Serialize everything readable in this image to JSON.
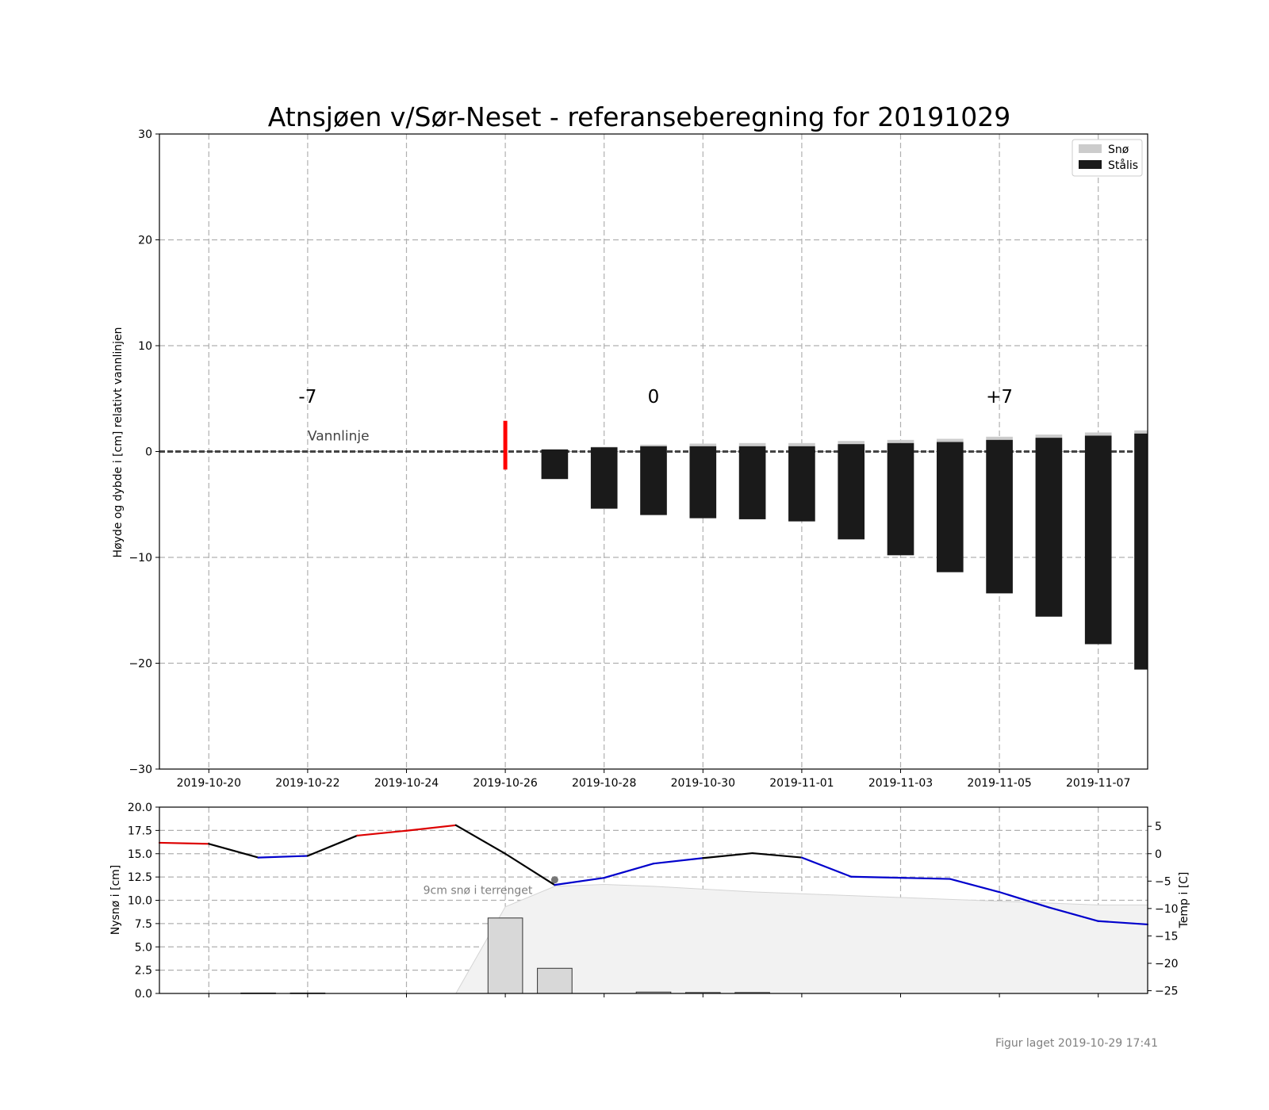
{
  "figure": {
    "title": "Atnsjøen v/Sør-Neset - referanseberegning for 20191029",
    "footer": "Figur laget 2019-10-29 17:41"
  },
  "chart_data": [
    {
      "type": "bar",
      "ylabel": "Høyde og dybde i [cm] relativt vannlinjen",
      "ylim": [
        -30,
        30
      ],
      "yticks": [
        30,
        20,
        10,
        0,
        -10,
        -20,
        -30
      ],
      "ytick_labels": [
        "30",
        "20",
        "10",
        "0",
        "−10",
        "−20",
        "−30"
      ],
      "xlim": [
        "2019-10-19",
        "2019-11-08"
      ],
      "xticks": [
        "2019-10-20",
        "2019-10-22",
        "2019-10-24",
        "2019-10-26",
        "2019-10-28",
        "2019-10-30",
        "2019-11-01",
        "2019-11-03",
        "2019-11-05",
        "2019-11-07"
      ],
      "grid": true,
      "legend": {
        "placement": "top-right",
        "entries": [
          {
            "label": "Snø",
            "color": "#cccccc"
          },
          {
            "label": "Stålis",
            "color": "#1a1a1a"
          }
        ]
      },
      "day_labels": [
        {
          "date": "2019-10-22",
          "text": "-7"
        },
        {
          "date": "2019-10-29",
          "text": "0"
        },
        {
          "date": "2019-11-05",
          "text": "+7"
        }
      ],
      "waterline": {
        "value": 0,
        "label": "Vannlinje",
        "label_date": "2019-10-22"
      },
      "reference_marker": {
        "date": "2019-10-26",
        "from": -1.7,
        "to": 2.9,
        "color": "#ff0000"
      },
      "dates": [
        "2019-10-27",
        "2019-10-28",
        "2019-10-29",
        "2019-10-30",
        "2019-10-31",
        "2019-11-01",
        "2019-11-02",
        "2019-11-03",
        "2019-11-04",
        "2019-11-05",
        "2019-11-06",
        "2019-11-07",
        "2019-11-08"
      ],
      "series": [
        {
          "name": "Stålis",
          "top": [
            0.2,
            0.4,
            0.5,
            0.5,
            0.5,
            0.5,
            0.7,
            0.8,
            0.9,
            1.1,
            1.3,
            1.5,
            1.7
          ],
          "bottom": [
            -2.6,
            -5.4,
            -6.0,
            -6.3,
            -6.4,
            -6.6,
            -8.3,
            -9.8,
            -11.4,
            -13.4,
            -15.6,
            -18.2,
            -20.6
          ]
        },
        {
          "name": "Snø",
          "values": [
            0.0,
            0.05,
            0.15,
            0.25,
            0.3,
            0.3,
            0.3,
            0.3,
            0.3,
            0.3,
            0.3,
            0.3,
            0.3
          ]
        }
      ]
    },
    {
      "type": "bar",
      "ylabel": "Nysnø i [cm]",
      "ylim": [
        0,
        20
      ],
      "yticks": [
        0,
        2.5,
        5,
        7.5,
        10,
        12.5,
        15,
        17.5,
        20
      ],
      "ytick_labels": [
        "0.0",
        "2.5",
        "5.0",
        "7.5",
        "10.0",
        "12.5",
        "15.0",
        "17.5",
        "20.0"
      ],
      "y2label": "Temp i [C]",
      "y2lim": [
        -25.5,
        8.5
      ],
      "y2ticks": [
        5,
        0,
        -5,
        -10,
        -15,
        -20,
        -25
      ],
      "y2tick_labels": [
        "5",
        "0",
        "−5",
        "−10",
        "−15",
        "−20",
        "−25"
      ],
      "xlim": [
        "2019-10-19",
        "2019-11-08"
      ],
      "grid": true,
      "snow_annotation": {
        "text": "9cm snø i terrenget",
        "date": "2019-10-27",
        "value": 12.2
      },
      "new_snow": {
        "dates": [
          "2019-10-21",
          "2019-10-22",
          "2019-10-26",
          "2019-10-27",
          "2019-10-29",
          "2019-10-30",
          "2019-10-31"
        ],
        "values": [
          0.05,
          0.05,
          8.1,
          2.7,
          0.15,
          0.1,
          0.1
        ]
      },
      "snow_on_ground": {
        "dates": [
          "2019-10-19",
          "2019-10-24",
          "2019-10-25",
          "2019-10-26",
          "2019-10-27",
          "2019-10-28",
          "2019-10-29",
          "2019-10-30",
          "2019-10-31",
          "2019-11-01",
          "2019-11-02",
          "2019-11-03",
          "2019-11-04",
          "2019-11-05",
          "2019-11-06",
          "2019-11-07",
          "2019-11-08"
        ],
        "values": [
          0,
          0,
          0,
          9.3,
          11.5,
          11.7,
          11.5,
          11.2,
          10.9,
          10.7,
          10.5,
          10.3,
          10.1,
          9.9,
          9.7,
          9.5,
          9.5
        ]
      },
      "temperature": {
        "dates": [
          "2019-10-19",
          "2019-10-20",
          "2019-10-21",
          "2019-10-22",
          "2019-10-23",
          "2019-10-24",
          "2019-10-25",
          "2019-10-26",
          "2019-10-27",
          "2019-10-28",
          "2019-10-29",
          "2019-10-30",
          "2019-10-31",
          "2019-11-01",
          "2019-11-02",
          "2019-11-03",
          "2019-11-04",
          "2019-11-05",
          "2019-11-06",
          "2019-11-07",
          "2019-11-08"
        ],
        "values": [
          2.0,
          1.8,
          -0.7,
          -0.4,
          3.3,
          4.2,
          5.2,
          0.0,
          -5.7,
          -4.4,
          -1.8,
          -0.8,
          0.1,
          -0.7,
          -4.2,
          -4.4,
          -4.6,
          -7.0,
          -9.8,
          -12.3,
          -12.9
        ],
        "colors": {
          "warm": "#dd0000",
          "cold": "#0000cc",
          "neutral": "#000000"
        }
      }
    }
  ]
}
